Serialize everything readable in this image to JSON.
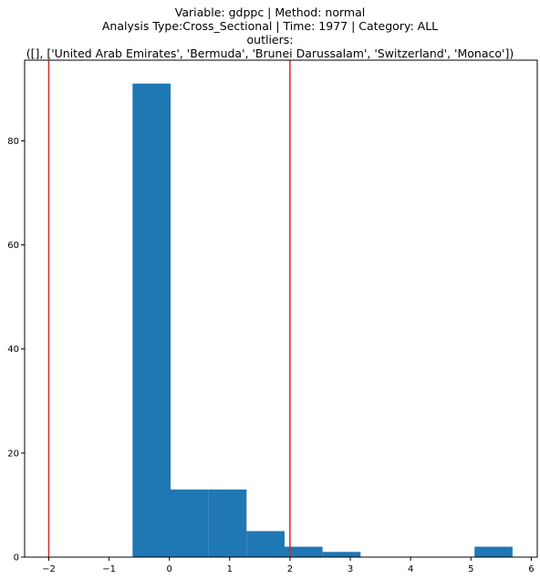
{
  "chart_data": {
    "type": "bar",
    "title_lines": [
      "Variable: gdppc | Method: normal",
      "Analysis Type:Cross_Sectional | Time: 1977 | Category: ALL",
      "outliers:",
      "([], ['United Arab Emirates', 'Bermuda', 'Brunei Darussalam', 'Switzerland', 'Monaco'])"
    ],
    "xlabel": "",
    "ylabel": "",
    "xlim": [
      -2.4,
      6.1
    ],
    "ylim": [
      0,
      95.5
    ],
    "x_ticks": [
      -2,
      -1,
      0,
      1,
      2,
      3,
      4,
      5,
      6
    ],
    "x_tick_labels": [
      "−2",
      "−1",
      "0",
      "1",
      "2",
      "3",
      "4",
      "5",
      "6"
    ],
    "y_ticks": [
      0,
      20,
      40,
      60,
      80
    ],
    "y_tick_labels": [
      "0",
      "20",
      "40",
      "60",
      "80"
    ],
    "bin_edges": [
      -0.61,
      0.02,
      0.65,
      1.28,
      1.91,
      2.54,
      3.17,
      3.8,
      4.43,
      5.06,
      5.69
    ],
    "values": [
      91,
      13,
      13,
      5,
      2,
      1,
      0,
      0,
      0,
      2
    ],
    "bar_color": "#1f77b4",
    "threshold_lines": [
      -2,
      2
    ],
    "threshold_color": "#d62728",
    "grid": false,
    "legend": "none"
  }
}
